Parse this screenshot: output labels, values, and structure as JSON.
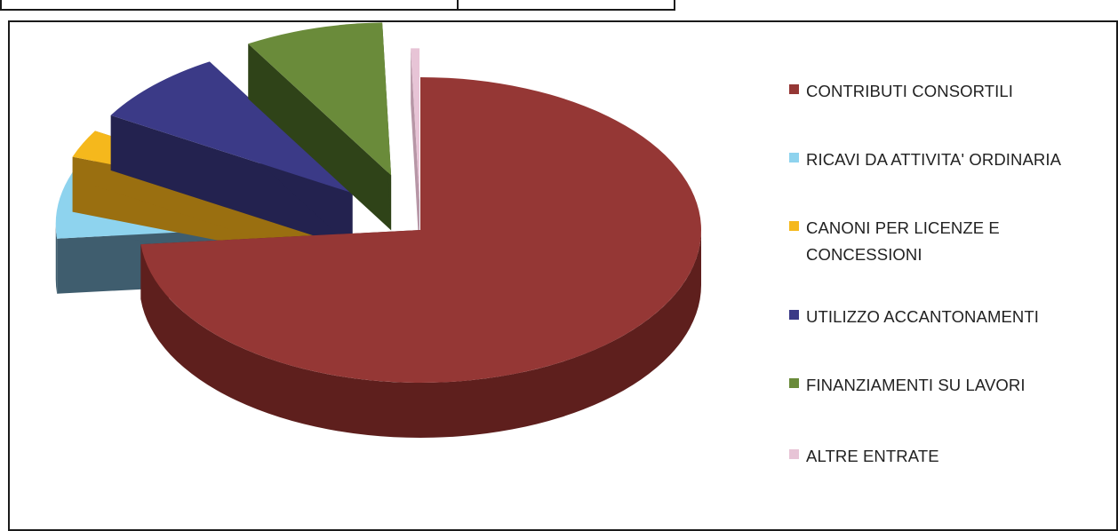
{
  "chart_data": {
    "type": "pie",
    "style": "3d-exploded",
    "categories": [
      "CONTRIBUTI CONSORTILI",
      "RICAVI DA ATTIVITA' ORDINARIA",
      "CANONI PER LICENZE E CONCESSIONI",
      "UTILIZZO ACCANTONAMENTI",
      "FINANZIAMENTI SU LAVORI",
      "ALTRE ENTRATE"
    ],
    "values": [
      73.5,
      7.0,
      3.0,
      8.0,
      8.0,
      0.5
    ],
    "colors": [
      "#953735",
      "#8ed3ee",
      "#f5b81c",
      "#3b3a87",
      "#6a8b3a",
      "#e7c4d6"
    ],
    "side_colors": [
      "#5e1f1d",
      "#3f5d6e",
      "#9a6f10",
      "#23224f",
      "#2f4318",
      "#b796a6"
    ],
    "legend_position": "right",
    "title": ""
  }
}
